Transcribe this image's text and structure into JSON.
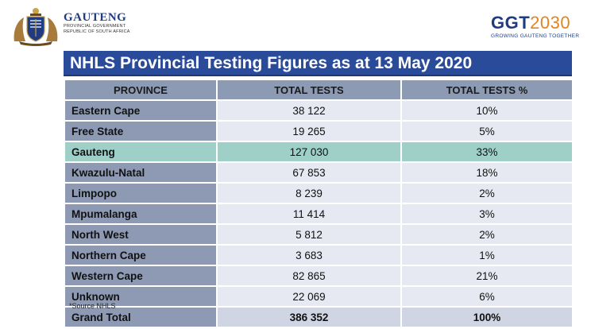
{
  "brand_left": {
    "name": "GAUTENG",
    "sub_line1": "PROVINCIAL GOVERNMENT",
    "sub_line2": "REPUBLIC OF SOUTH AFRICA"
  },
  "brand_right": {
    "word_a": "GGT",
    "word_b": "2030",
    "tagline": "GROWING GAUTENG TOGETHER"
  },
  "title": "NHLS Provincial Testing Figures as at 13 May 2020",
  "table": {
    "headers": [
      "PROVINCE",
      "TOTAL TESTS",
      "TOTAL TESTS %"
    ],
    "rows": [
      {
        "province": "Eastern Cape",
        "tests": "38 122",
        "pct": "10%"
      },
      {
        "province": "Free State",
        "tests": "19 265",
        "pct": "5%"
      },
      {
        "province": "Gauteng",
        "tests": "127 030",
        "pct": "33%"
      },
      {
        "province": "Kwazulu-Natal",
        "tests": "67 853",
        "pct": "18%"
      },
      {
        "province": "Limpopo",
        "tests": "8 239",
        "pct": "2%"
      },
      {
        "province": "Mpumalanga",
        "tests": "11 414",
        "pct": "3%"
      },
      {
        "province": "North West",
        "tests": "5 812",
        "pct": "2%"
      },
      {
        "province": "Northern Cape",
        "tests": "3 683",
        "pct": "1%"
      },
      {
        "province": "Western Cape",
        "tests": "82 865",
        "pct": "21%"
      },
      {
        "province": "Unknown",
        "tests": "22 069",
        "pct": "6%"
      }
    ],
    "total": {
      "province": "Grand Total",
      "tests": "386 352",
      "pct": "100%"
    }
  },
  "source_note": "*Source NHLS",
  "colors": {
    "title_bg": "#2a4a9a",
    "header_bg": "#8d9ab3",
    "province_bg": "#8e9ab4",
    "value_bg": "#e6e9f1",
    "highlight_bg": "#9fd0c8",
    "brand_blue": "#1f3b82",
    "brand_orange": "#e4831f"
  }
}
